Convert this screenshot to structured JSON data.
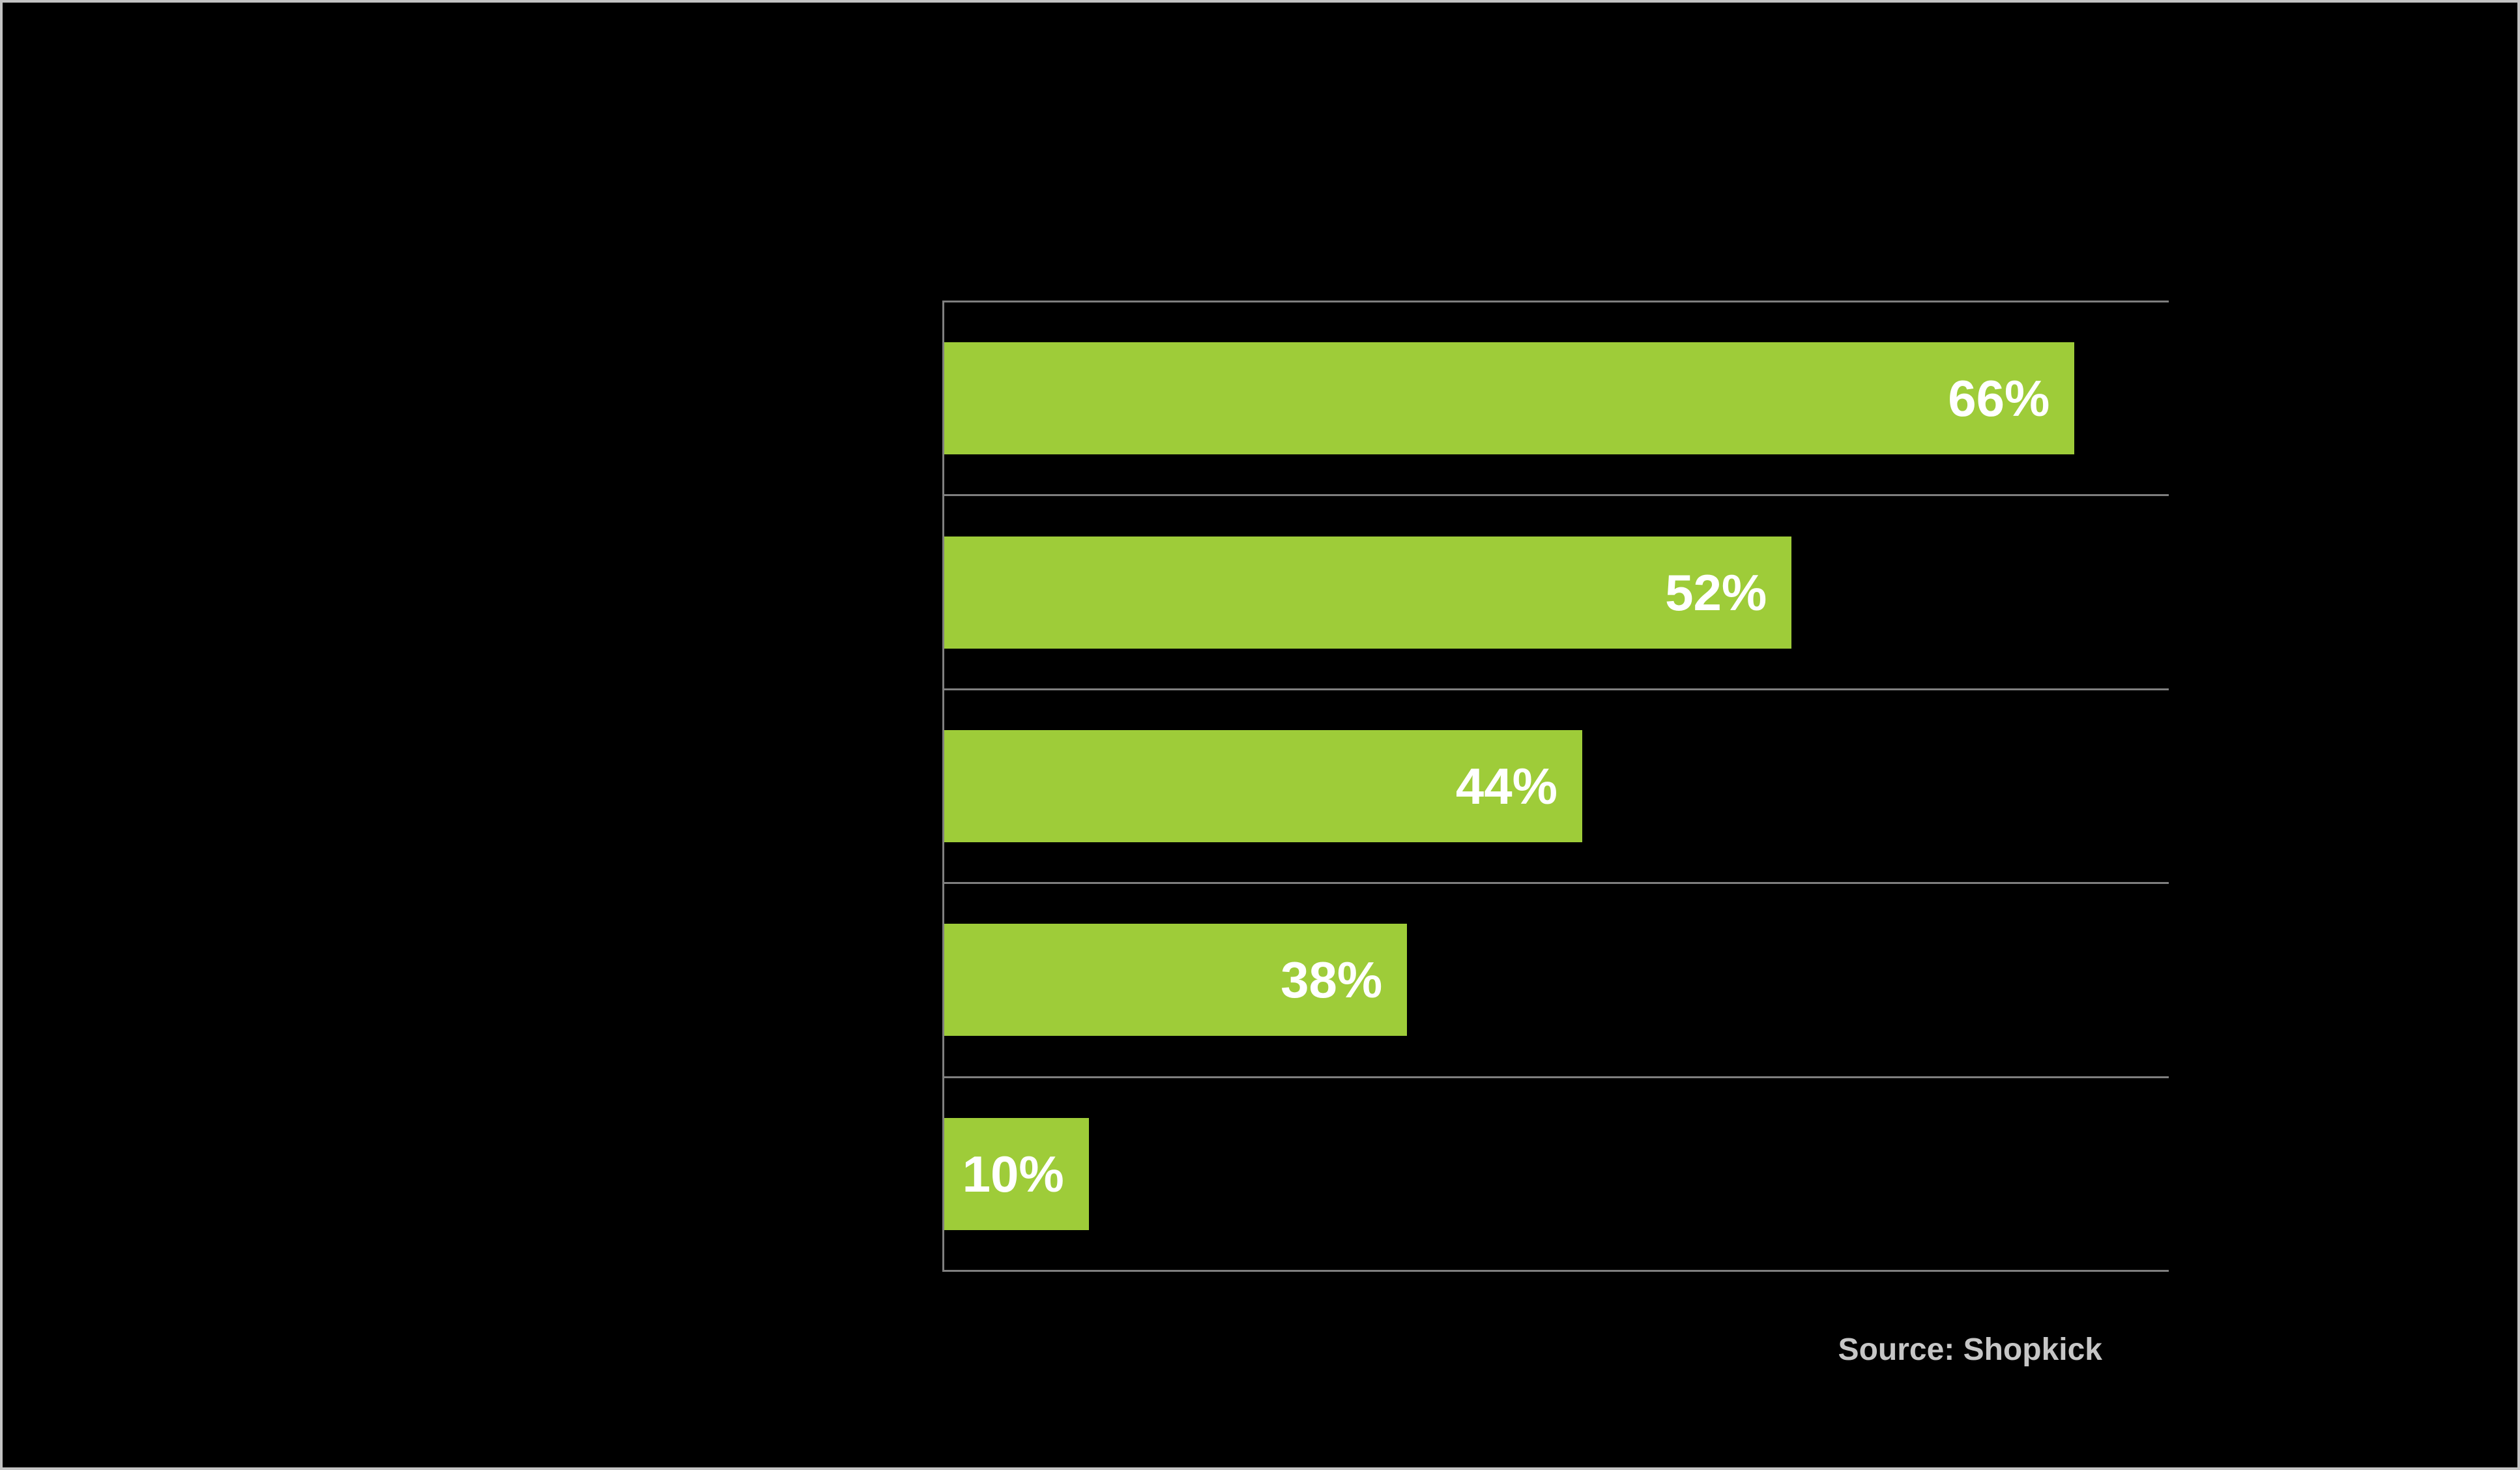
{
  "chart_data": {
    "type": "bar",
    "orientation": "horizontal",
    "title": "",
    "categories": [
      "",
      "",
      "",
      "",
      ""
    ],
    "values": [
      66,
      52,
      44,
      38,
      10
    ],
    "bars": [
      {
        "label": "66%",
        "value": 66,
        "width_fraction": 0.923
      },
      {
        "label": "52%",
        "value": 52,
        "width_fraction": 0.692
      },
      {
        "label": "44%",
        "value": 44,
        "width_fraction": 0.521
      },
      {
        "label": "38%",
        "value": 38,
        "width_fraction": 0.378
      },
      {
        "label": "10%",
        "value": 10,
        "width_fraction": 0.118
      }
    ],
    "legend": "none",
    "grid": "horizontal band separator lines between categories",
    "colors": {
      "bar_fill": "#9ECC39",
      "bar_label_text": "#FFFFFF",
      "background": "#000000",
      "gridline": "#7F7F7F",
      "source_text": "#C6C6C6",
      "frame_border": "#C3C3C3"
    },
    "source_note": "Source: Shopkick"
  },
  "footer": {
    "source_label": "Source: Shopkick"
  }
}
